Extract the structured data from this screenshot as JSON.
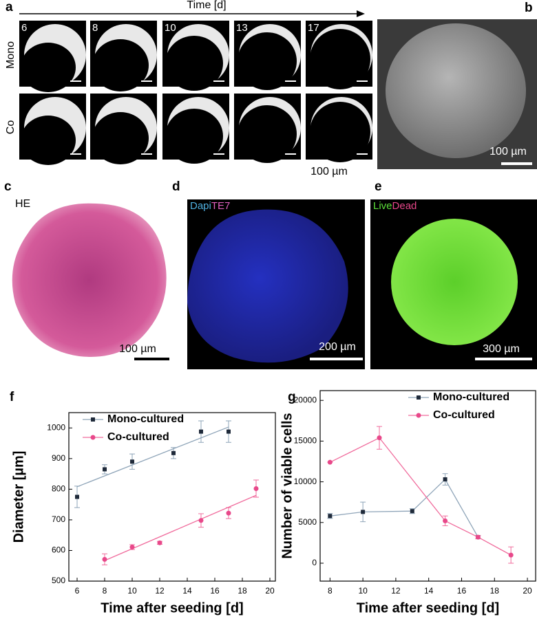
{
  "panels": {
    "a": {
      "label": "a",
      "axis": "Time [d]",
      "rows": [
        "Mono",
        "Co"
      ],
      "days": [
        6,
        8,
        10,
        13,
        17
      ],
      "scale": "100 µm"
    },
    "b": {
      "label": "b",
      "scale": "100 µm"
    },
    "c": {
      "label": "c",
      "stain": "HE",
      "scale": "100 µm"
    },
    "d": {
      "label": "d",
      "stains": [
        "Dapi",
        "TE7"
      ],
      "scale": "200 µm"
    },
    "e": {
      "label": "e",
      "stains": [
        "Live",
        "Dead"
      ],
      "scale": "300 µm"
    }
  },
  "chart_data": [
    {
      "type": "scatter",
      "panel_label": "f",
      "x_label": "Time after seeding [d]",
      "y_label": "Diameter [µm]",
      "xlim": [
        5.4,
        20.4
      ],
      "xticks": [
        6,
        8,
        10,
        12,
        14,
        16,
        18,
        20
      ],
      "ylim": [
        500,
        1050
      ],
      "yticks": [
        500,
        600,
        700,
        800,
        900,
        1000
      ],
      "legend": "upper left",
      "series": [
        {
          "name": "Mono-cultured",
          "color": "#1f2a3a",
          "line_color": "#8ea4b8",
          "marker": "square",
          "x": [
            6,
            8,
            10,
            13,
            15,
            17
          ],
          "values": [
            775,
            865,
            890,
            918,
            988,
            988
          ],
          "errors": [
            35,
            15,
            25,
            18,
            35,
            35
          ],
          "fit": {
            "x": [
              6,
              17
            ],
            "values": [
              808,
              1003
            ]
          }
        },
        {
          "name": "Co-cultured",
          "color": "#e8488a",
          "line_color": "#f06b9c",
          "marker": "circle",
          "x": [
            8,
            10,
            12,
            15,
            17,
            19
          ],
          "values": [
            571,
            611,
            625,
            698,
            722,
            802
          ],
          "errors": [
            18,
            8,
            5,
            22,
            18,
            28
          ],
          "fit": {
            "x": [
              8,
              19
            ],
            "values": [
              567,
              780
            ]
          }
        }
      ]
    },
    {
      "type": "line",
      "panel_label": "g",
      "x_label": "Time after seeding [d]",
      "y_label": "Number of viable cells",
      "xlim": [
        7.4,
        20.5
      ],
      "xticks": [
        8,
        10,
        12,
        14,
        16,
        18,
        20
      ],
      "ylim": [
        -2200,
        21200
      ],
      "yticks": [
        0,
        5000,
        10000,
        15000,
        20000
      ],
      "legend": "upper right",
      "series": [
        {
          "name": "Mono-cultured",
          "color": "#1f2a3a",
          "line_color": "#8ea4b8",
          "marker": "square",
          "x": [
            8,
            10,
            13,
            15,
            17
          ],
          "values": [
            5800,
            6300,
            6400,
            10300,
            3200
          ],
          "errors": [
            300,
            1200,
            300,
            700,
            200
          ]
        },
        {
          "name": "Co-cultured",
          "color": "#e8488a",
          "line_color": "#f06b9c",
          "marker": "circle",
          "x": [
            8,
            11,
            15,
            17,
            19
          ],
          "values": [
            12400,
            15400,
            5200,
            3200,
            1000
          ],
          "errors": [
            0,
            1400,
            600,
            200,
            1000
          ]
        }
      ]
    }
  ]
}
